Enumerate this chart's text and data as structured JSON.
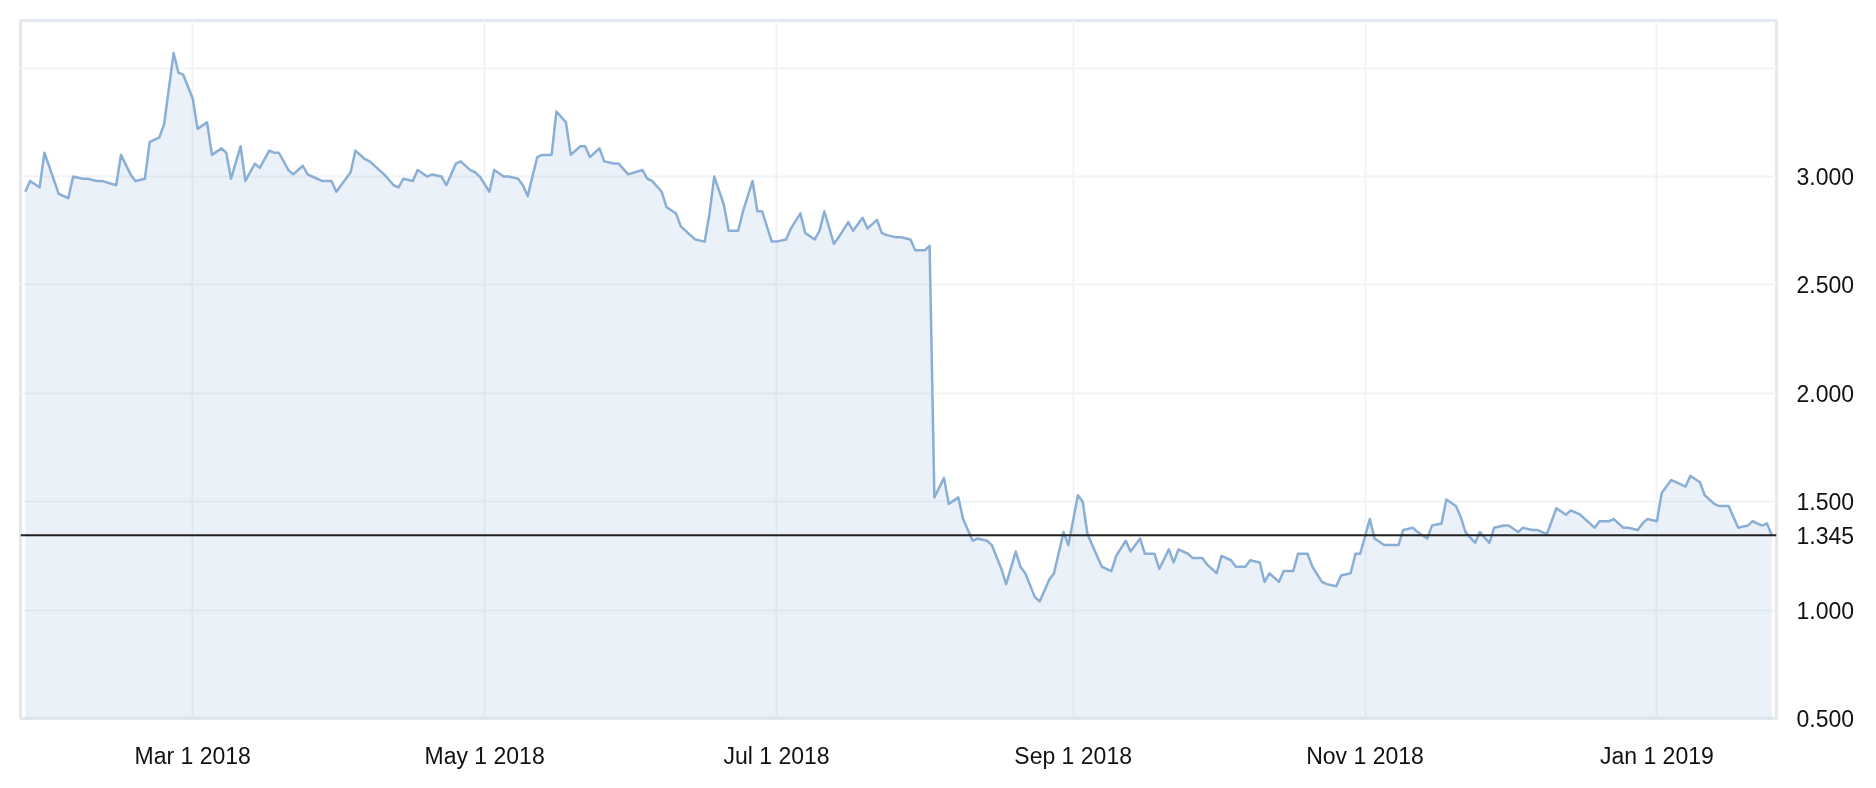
{
  "chart_data": {
    "type": "area",
    "x": [
      "2018-01-25",
      "2018-01-26",
      "2018-01-28",
      "2018-01-29",
      "2018-02-01",
      "2018-02-03",
      "2018-02-04",
      "2018-02-06",
      "2018-02-07",
      "2018-02-09",
      "2018-02-10",
      "2018-02-13",
      "2018-02-14",
      "2018-02-16",
      "2018-02-17",
      "2018-02-19",
      "2018-02-20",
      "2018-02-22",
      "2018-02-23",
      "2018-02-25",
      "2018-02-26",
      "2018-02-27",
      "2018-03-01",
      "2018-03-02",
      "2018-03-04",
      "2018-03-05",
      "2018-03-07",
      "2018-03-08",
      "2018-03-09",
      "2018-03-11",
      "2018-03-12",
      "2018-03-14",
      "2018-03-15",
      "2018-03-17",
      "2018-03-18",
      "2018-03-19",
      "2018-03-21",
      "2018-03-22",
      "2018-03-24",
      "2018-03-25",
      "2018-03-27",
      "2018-03-28",
      "2018-03-30",
      "2018-03-31",
      "2018-04-01",
      "2018-04-03",
      "2018-04-04",
      "2018-04-06",
      "2018-04-07",
      "2018-04-09",
      "2018-04-10",
      "2018-04-12",
      "2018-04-13",
      "2018-04-14",
      "2018-04-16",
      "2018-04-17",
      "2018-04-19",
      "2018-04-20",
      "2018-04-22",
      "2018-04-23",
      "2018-04-25",
      "2018-04-26",
      "2018-04-28",
      "2018-04-29",
      "2018-04-30",
      "2018-05-02",
      "2018-05-03",
      "2018-05-05",
      "2018-05-06",
      "2018-05-08",
      "2018-05-09",
      "2018-05-10",
      "2018-05-12",
      "2018-05-13",
      "2018-05-15",
      "2018-05-16",
      "2018-05-18",
      "2018-05-19",
      "2018-05-21",
      "2018-05-22",
      "2018-05-23",
      "2018-05-25",
      "2018-05-26",
      "2018-05-28",
      "2018-05-29",
      "2018-05-31",
      "2018-06-03",
      "2018-06-04",
      "2018-06-05",
      "2018-06-07",
      "2018-06-08",
      "2018-06-10",
      "2018-06-11",
      "2018-06-13",
      "2018-06-14",
      "2018-06-16",
      "2018-06-17",
      "2018-06-18",
      "2018-06-20",
      "2018-06-21",
      "2018-06-23",
      "2018-06-24",
      "2018-06-26",
      "2018-06-27",
      "2018-06-28",
      "2018-06-30",
      "2018-07-01",
      "2018-07-03",
      "2018-07-04",
      "2018-07-06",
      "2018-07-07",
      "2018-07-09",
      "2018-07-10",
      "2018-07-11",
      "2018-07-13",
      "2018-07-14",
      "2018-07-16",
      "2018-07-17",
      "2018-07-19",
      "2018-07-20",
      "2018-07-22",
      "2018-07-23",
      "2018-07-24",
      "2018-07-26",
      "2018-07-27",
      "2018-07-29",
      "2018-07-30",
      "2018-08-01",
      "2018-08-02",
      "2018-08-03",
      "2018-08-05",
      "2018-08-06",
      "2018-08-08",
      "2018-08-09",
      "2018-08-11",
      "2018-08-12",
      "2018-08-14",
      "2018-08-15",
      "2018-08-17",
      "2018-08-18",
      "2018-08-20",
      "2018-08-21",
      "2018-08-22",
      "2018-08-24",
      "2018-08-25",
      "2018-08-27",
      "2018-08-28",
      "2018-08-30",
      "2018-08-31",
      "2018-09-02",
      "2018-09-03",
      "2018-09-04",
      "2018-09-06",
      "2018-09-07",
      "2018-09-09",
      "2018-09-10",
      "2018-09-12",
      "2018-09-13",
      "2018-09-15",
      "2018-09-16",
      "2018-09-18",
      "2018-09-19",
      "2018-09-21",
      "2018-09-22",
      "2018-09-23",
      "2018-09-25",
      "2018-09-26",
      "2018-09-28",
      "2018-09-29",
      "2018-10-01",
      "2018-10-02",
      "2018-10-04",
      "2018-10-05",
      "2018-10-07",
      "2018-10-08",
      "2018-10-10",
      "2018-10-11",
      "2018-10-12",
      "2018-10-14",
      "2018-10-15",
      "2018-10-17",
      "2018-10-18",
      "2018-10-20",
      "2018-10-21",
      "2018-10-23",
      "2018-10-24",
      "2018-10-26",
      "2018-10-27",
      "2018-10-29",
      "2018-10-30",
      "2018-10-31",
      "2018-11-02",
      "2018-11-03",
      "2018-11-05",
      "2018-11-06",
      "2018-11-08",
      "2018-11-09",
      "2018-11-11",
      "2018-11-12",
      "2018-11-14",
      "2018-11-15",
      "2018-11-17",
      "2018-11-18",
      "2018-11-20",
      "2018-11-21",
      "2018-11-22",
      "2018-11-24",
      "2018-11-25",
      "2018-11-27",
      "2018-11-28",
      "2018-11-30",
      "2018-12-01",
      "2018-12-03",
      "2018-12-04",
      "2018-12-06",
      "2018-12-07",
      "2018-12-09",
      "2018-12-10",
      "2018-12-11",
      "2018-12-13",
      "2018-12-14",
      "2018-12-16",
      "2018-12-17",
      "2018-12-19",
      "2018-12-20",
      "2018-12-22",
      "2018-12-23",
      "2018-12-25",
      "2018-12-26",
      "2018-12-28",
      "2018-12-29",
      "2018-12-30",
      "2019-01-01",
      "2019-01-02",
      "2019-01-04",
      "2019-01-05",
      "2019-01-07",
      "2019-01-08",
      "2019-01-10",
      "2019-01-11",
      "2019-01-13",
      "2019-01-14",
      "2019-01-16",
      "2019-01-17",
      "2019-01-18",
      "2019-01-20",
      "2019-01-21",
      "2019-01-23",
      "2019-01-24",
      "2019-01-25"
    ],
    "series": [
      {
        "color": "#8aafd6",
        "values": [
          2.93,
          2.98,
          2.95,
          3.11,
          2.92,
          2.9,
          3.0,
          2.99,
          2.99,
          2.98,
          2.98,
          2.96,
          3.1,
          3.01,
          2.98,
          2.99,
          3.16,
          3.18,
          3.24,
          3.57,
          3.48,
          3.47,
          3.36,
          3.22,
          3.25,
          3.1,
          3.13,
          3.11,
          2.99,
          3.14,
          2.98,
          3.06,
          3.04,
          3.12,
          3.11,
          3.11,
          3.03,
          3.01,
          3.05,
          3.01,
          2.99,
          2.98,
          2.98,
          2.93,
          2.96,
          3.02,
          3.12,
          3.08,
          3.07,
          3.03,
          3.01,
          2.96,
          2.95,
          2.99,
          2.98,
          3.03,
          3.0,
          3.01,
          3.0,
          2.96,
          3.06,
          3.07,
          3.03,
          3.02,
          3.0,
          2.93,
          3.03,
          3.0,
          3.0,
          2.99,
          2.96,
          2.91,
          3.09,
          3.1,
          3.1,
          3.3,
          3.25,
          3.1,
          3.14,
          3.14,
          3.09,
          3.13,
          3.07,
          3.06,
          3.06,
          3.01,
          3.03,
          2.99,
          2.98,
          2.93,
          2.86,
          2.83,
          2.77,
          2.73,
          2.71,
          2.7,
          2.83,
          3.0,
          2.87,
          2.75,
          2.75,
          2.84,
          2.98,
          2.84,
          2.84,
          2.7,
          2.7,
          2.71,
          2.76,
          2.83,
          2.74,
          2.71,
          2.75,
          2.84,
          2.69,
          2.72,
          2.79,
          2.75,
          2.81,
          2.76,
          2.8,
          2.74,
          2.73,
          2.72,
          2.72,
          2.71,
          2.66,
          2.66,
          2.68,
          1.52,
          1.61,
          1.49,
          1.52,
          1.42,
          1.32,
          1.33,
          1.32,
          1.3,
          1.19,
          1.12,
          1.27,
          1.2,
          1.17,
          1.06,
          1.04,
          1.14,
          1.17,
          1.36,
          1.3,
          1.53,
          1.5,
          1.35,
          1.25,
          1.2,
          1.18,
          1.25,
          1.32,
          1.27,
          1.33,
          1.26,
          1.26,
          1.19,
          1.28,
          1.22,
          1.28,
          1.26,
          1.24,
          1.24,
          1.21,
          1.17,
          1.25,
          1.23,
          1.2,
          1.2,
          1.23,
          1.22,
          1.13,
          1.17,
          1.13,
          1.18,
          1.18,
          1.26,
          1.26,
          1.2,
          1.13,
          1.12,
          1.11,
          1.16,
          1.17,
          1.26,
          1.26,
          1.42,
          1.33,
          1.3,
          1.3,
          1.3,
          1.37,
          1.38,
          1.36,
          1.33,
          1.39,
          1.4,
          1.51,
          1.48,
          1.43,
          1.36,
          1.31,
          1.36,
          1.31,
          1.38,
          1.39,
          1.39,
          1.36,
          1.38,
          1.37,
          1.37,
          1.35,
          1.41,
          1.47,
          1.44,
          1.46,
          1.44,
          1.42,
          1.38,
          1.41,
          1.41,
          1.42,
          1.38,
          1.38,
          1.37,
          1.4,
          1.42,
          1.41,
          1.54,
          1.6,
          1.59,
          1.57,
          1.62,
          1.59,
          1.53,
          1.49,
          1.48,
          1.48,
          1.43,
          1.38,
          1.39,
          1.41,
          1.39,
          1.4,
          1.345
        ]
      }
    ],
    "xlim": [
      "2018-01-24",
      "2019-01-26"
    ],
    "xticks": [
      {
        "value": "2018-03-01",
        "label": "Mar 1 2018"
      },
      {
        "value": "2018-05-01",
        "label": "May 1 2018"
      },
      {
        "value": "2018-07-01",
        "label": "Jul 1 2018"
      },
      {
        "value": "2018-09-01",
        "label": "Sep 1 2018"
      },
      {
        "value": "2018-11-01",
        "label": "Nov 1 2018"
      },
      {
        "value": "2019-01-01",
        "label": "Jan 1 2019"
      }
    ],
    "ylim": [
      0.5,
      3.72
    ],
    "yticks": [
      {
        "value": 0.5,
        "label": "0.500"
      },
      {
        "value": 1.0,
        "label": "1.000"
      },
      {
        "value": 1.5,
        "label": "1.500"
      },
      {
        "value": 2.0,
        "label": "2.000"
      },
      {
        "value": 2.5,
        "label": "2.500"
      },
      {
        "value": 3.0,
        "label": "3.000"
      },
      {
        "value": 3.5,
        "label": null
      }
    ],
    "ref_lines": [
      {
        "axis": "y",
        "value": 1.345,
        "label": "1.345",
        "color": "#222222"
      }
    ],
    "grid": true
  }
}
